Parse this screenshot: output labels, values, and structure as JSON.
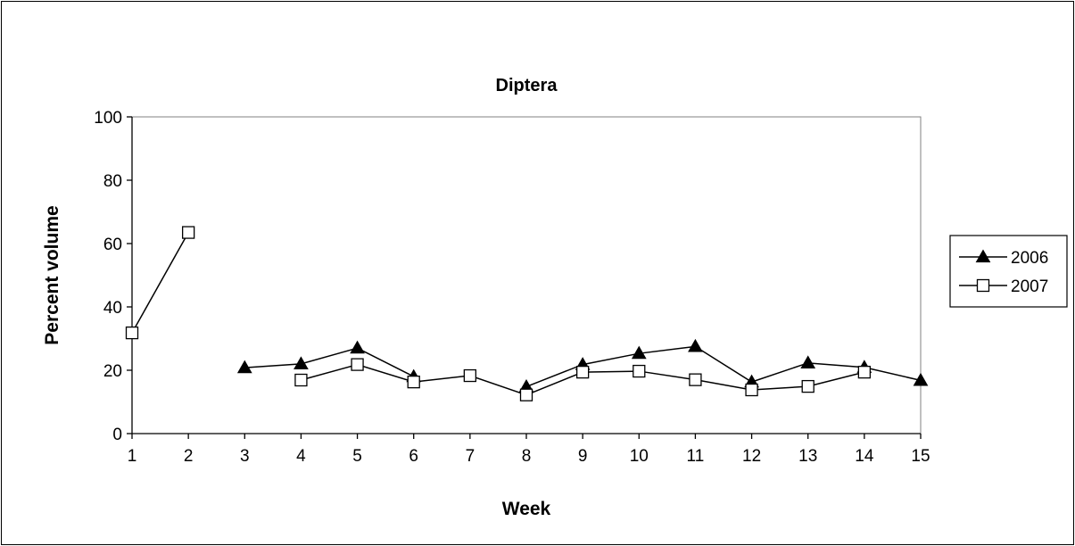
{
  "chart_data": {
    "type": "line",
    "title": "Diptera",
    "xlabel": "Week",
    "ylabel": "Percent volume",
    "x": [
      1,
      2,
      3,
      4,
      5,
      6,
      7,
      8,
      9,
      10,
      11,
      12,
      13,
      14,
      15
    ],
    "xlim": [
      1,
      15
    ],
    "ylim": [
      0,
      100
    ],
    "y_ticks": [
      0,
      20,
      40,
      60,
      80,
      100
    ],
    "grid": false,
    "legend_position": "right",
    "series": [
      {
        "name": "2006",
        "marker": "filled-triangle",
        "color": "#000000",
        "values": [
          null,
          null,
          20.8,
          22.0,
          27.0,
          18.0,
          null,
          14.8,
          21.8,
          25.3,
          27.5,
          16.3,
          22.3,
          20.9,
          16.8
        ]
      },
      {
        "name": "2007",
        "marker": "open-square",
        "color": "#000000",
        "values": [
          31.8,
          63.5,
          null,
          16.9,
          21.8,
          16.3,
          18.3,
          12.2,
          19.4,
          19.7,
          17.0,
          13.8,
          14.9,
          19.4,
          null
        ]
      }
    ]
  }
}
